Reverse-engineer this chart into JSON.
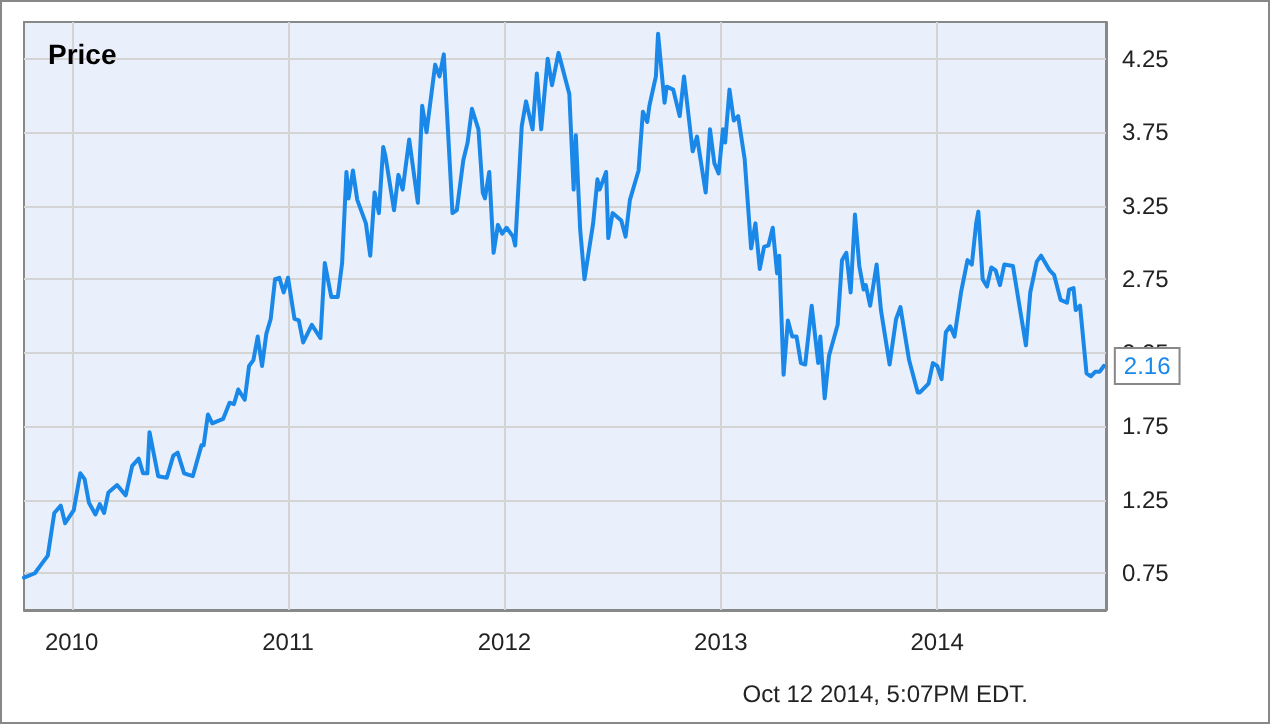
{
  "chart_data": {
    "type": "line",
    "title": "Price",
    "annotations": [
      "Oct 12 2014, 5:07PM EDT."
    ],
    "xlim": [
      2009.78,
      2014.78
    ],
    "xticks": [
      2010,
      2011,
      2012,
      2013,
      2014
    ],
    "ylim": [
      0.5,
      4.5
    ],
    "yticks": [
      0.75,
      1.25,
      1.75,
      2.25,
      2.75,
      3.25,
      3.75,
      4.25
    ],
    "grid": true,
    "marker": "none",
    "line_style": "solid",
    "series": [
      {
        "color": "#1a88e8",
        "x": [
          2009.78,
          2009.83,
          2009.86,
          2009.89,
          2009.92,
          2009.95,
          2009.97,
          2010.01,
          2010.04,
          2010.06,
          2010.08,
          2010.11,
          2010.13,
          2010.15,
          2010.17,
          2010.21,
          2010.25,
          2010.28,
          2010.31,
          2010.33,
          2010.35,
          2010.36,
          2010.4,
          2010.44,
          2010.47,
          2010.49,
          2010.52,
          2010.56,
          2010.6,
          2010.61,
          2010.63,
          2010.65,
          2010.7,
          2010.73,
          2010.75,
          2010.77,
          2010.8,
          2010.82,
          2010.84,
          2010.86,
          2010.88,
          2010.9,
          2010.92,
          2010.94,
          2010.96,
          2010.98,
          2011.0,
          2011.03,
          2011.05,
          2011.07,
          2011.11,
          2011.15,
          2011.17,
          2011.2,
          2011.23,
          2011.25,
          2011.27,
          2011.28,
          2011.3,
          2011.32,
          2011.36,
          2011.38,
          2011.4,
          2011.42,
          2011.44,
          2011.45,
          2011.49,
          2011.51,
          2011.53,
          2011.56,
          2011.6,
          2011.62,
          2011.64,
          2011.68,
          2011.7,
          2011.72,
          2011.76,
          2011.78,
          2011.81,
          2011.83,
          2011.85,
          2011.88,
          2011.9,
          2011.91,
          2011.93,
          2011.95,
          2011.97,
          2011.99,
          2012.01,
          2012.04,
          2012.05,
          2012.08,
          2012.1,
          2012.13,
          2012.15,
          2012.17,
          2012.2,
          2012.22,
          2012.25,
          2012.3,
          2012.32,
          2012.33,
          2012.35,
          2012.37,
          2012.41,
          2012.43,
          2012.44,
          2012.47,
          2012.48,
          2012.5,
          2012.54,
          2012.56,
          2012.58,
          2012.62,
          2012.64,
          2012.66,
          2012.67,
          2012.7,
          2012.71,
          2012.74,
          2012.75,
          2012.78,
          2012.81,
          2012.83,
          2012.87,
          2012.89,
          2012.93,
          2012.95,
          2012.97,
          2012.99,
          2013.01,
          2013.02,
          2013.04,
          2013.06,
          2013.08,
          2013.11,
          2013.14,
          2013.16,
          2013.18,
          2013.2,
          2013.22,
          2013.24,
          2013.26,
          2013.27,
          2013.29,
          2013.31,
          2013.33,
          2013.35,
          2013.37,
          2013.39,
          2013.42,
          2013.45,
          2013.46,
          2013.48,
          2013.5,
          2013.54,
          2013.56,
          2013.58,
          2013.6,
          2013.62,
          2013.64,
          2013.66,
          2013.67,
          2013.69,
          2013.72,
          2013.74,
          2013.78,
          2013.81,
          2013.83,
          2013.87,
          2013.91,
          2013.92,
          2013.96,
          2013.98,
          2014.0,
          2014.02,
          2014.04,
          2014.06,
          2014.08,
          2014.11,
          2014.14,
          2014.16,
          2014.18,
          2014.19,
          2014.21,
          2014.23,
          2014.25,
          2014.27,
          2014.29,
          2014.31,
          2014.35,
          2014.38,
          2014.41,
          2014.43,
          2014.46,
          2014.48,
          2014.52,
          2014.54,
          2014.57,
          2014.6,
          2014.61,
          2014.63,
          2014.64,
          2014.66,
          2014.69,
          2014.71,
          2014.73,
          2014.75,
          2014.77
        ],
        "values": [
          0.72,
          0.75,
          0.81,
          0.87,
          1.16,
          1.21,
          1.09,
          1.18,
          1.43,
          1.39,
          1.23,
          1.15,
          1.22,
          1.16,
          1.3,
          1.35,
          1.28,
          1.48,
          1.53,
          1.43,
          1.43,
          1.71,
          1.41,
          1.4,
          1.55,
          1.57,
          1.43,
          1.41,
          1.62,
          1.62,
          1.83,
          1.77,
          1.8,
          1.91,
          1.9,
          2.0,
          1.93,
          2.16,
          2.2,
          2.36,
          2.16,
          2.38,
          2.48,
          2.75,
          2.76,
          2.66,
          2.76,
          2.48,
          2.47,
          2.32,
          2.44,
          2.35,
          2.86,
          2.63,
          2.63,
          2.86,
          3.48,
          3.3,
          3.49,
          3.29,
          3.13,
          2.91,
          3.34,
          3.2,
          3.65,
          3.59,
          3.22,
          3.46,
          3.36,
          3.7,
          3.27,
          3.93,
          3.75,
          4.21,
          4.13,
          4.28,
          3.2,
          3.22,
          3.56,
          3.68,
          3.91,
          3.77,
          3.34,
          3.3,
          3.48,
          2.93,
          3.12,
          3.06,
          3.1,
          3.04,
          2.98,
          3.79,
          3.96,
          3.77,
          4.15,
          3.77,
          4.25,
          4.07,
          4.29,
          4.01,
          3.36,
          3.73,
          3.09,
          2.75,
          3.13,
          3.43,
          3.36,
          3.48,
          3.03,
          3.2,
          3.15,
          3.04,
          3.29,
          3.49,
          3.89,
          3.82,
          3.93,
          4.13,
          4.42,
          3.95,
          4.06,
          4.04,
          3.86,
          4.13,
          3.62,
          3.72,
          3.34,
          3.77,
          3.54,
          3.47,
          3.77,
          3.68,
          4.04,
          3.83,
          3.86,
          3.57,
          2.96,
          3.13,
          2.82,
          2.97,
          2.98,
          3.1,
          2.79,
          2.91,
          2.1,
          2.47,
          2.36,
          2.36,
          2.18,
          2.17,
          2.57,
          2.18,
          2.36,
          1.94,
          2.23,
          2.44,
          2.88,
          2.93,
          2.66,
          3.19,
          2.84,
          2.68,
          2.71,
          2.57,
          2.85,
          2.54,
          2.17,
          2.48,
          2.56,
          2.2,
          1.98,
          1.98,
          2.04,
          2.18,
          2.16,
          2.07,
          2.39,
          2.43,
          2.36,
          2.66,
          2.88,
          2.85,
          3.13,
          3.21,
          2.75,
          2.7,
          2.83,
          2.81,
          2.71,
          2.85,
          2.84,
          2.57,
          2.3,
          2.66,
          2.87,
          2.91,
          2.81,
          2.78,
          2.61,
          2.59,
          2.68,
          2.69,
          2.54,
          2.57,
          2.11,
          2.09,
          2.12,
          2.12,
          2.16
        ],
        "value_labels": [
          null,
          null,
          null,
          null,
          null,
          null,
          null,
          null,
          null,
          null,
          null,
          null,
          null,
          null,
          null,
          null,
          null,
          null,
          null,
          null,
          null,
          null,
          null,
          null,
          null,
          null,
          null,
          null,
          null,
          null,
          null,
          null,
          null,
          null,
          null,
          null,
          null,
          null,
          null,
          null,
          null,
          null,
          null,
          null,
          null,
          null,
          null,
          null,
          null,
          null,
          null,
          null,
          null,
          null,
          null,
          null,
          null,
          null,
          null,
          null,
          null,
          null,
          null,
          null,
          null,
          null,
          null,
          null,
          null,
          null,
          null,
          null,
          null,
          null,
          null,
          null,
          null,
          null,
          null,
          null,
          null,
          null,
          null,
          null,
          null,
          null,
          null,
          null,
          null,
          null,
          null,
          null,
          null,
          null,
          null,
          null,
          null,
          null,
          null,
          null,
          null,
          null,
          null,
          null,
          null,
          null,
          null,
          null,
          null,
          null,
          null,
          null,
          null,
          null,
          null,
          null,
          null,
          null,
          null,
          null,
          null,
          null,
          null,
          null,
          null,
          null,
          null,
          null,
          null,
          null,
          null,
          null,
          null,
          null,
          null,
          null,
          null,
          null,
          null,
          null,
          null,
          null,
          null,
          null,
          null,
          null,
          null,
          null,
          null,
          null,
          null,
          null,
          null,
          null,
          null,
          null,
          null,
          null,
          null,
          null,
          null,
          null,
          null,
          null,
          null,
          null,
          null,
          null,
          null,
          null,
          null,
          null,
          null,
          null,
          null,
          null,
          null,
          null,
          null,
          null,
          null,
          null,
          null,
          null,
          null,
          null,
          null,
          null,
          null,
          null,
          null,
          null,
          null,
          null,
          null,
          null,
          null,
          null,
          null,
          null,
          null,
          null,
          null,
          null,
          null,
          null,
          null,
          null,
          "2.16"
        ]
      }
    ]
  }
}
